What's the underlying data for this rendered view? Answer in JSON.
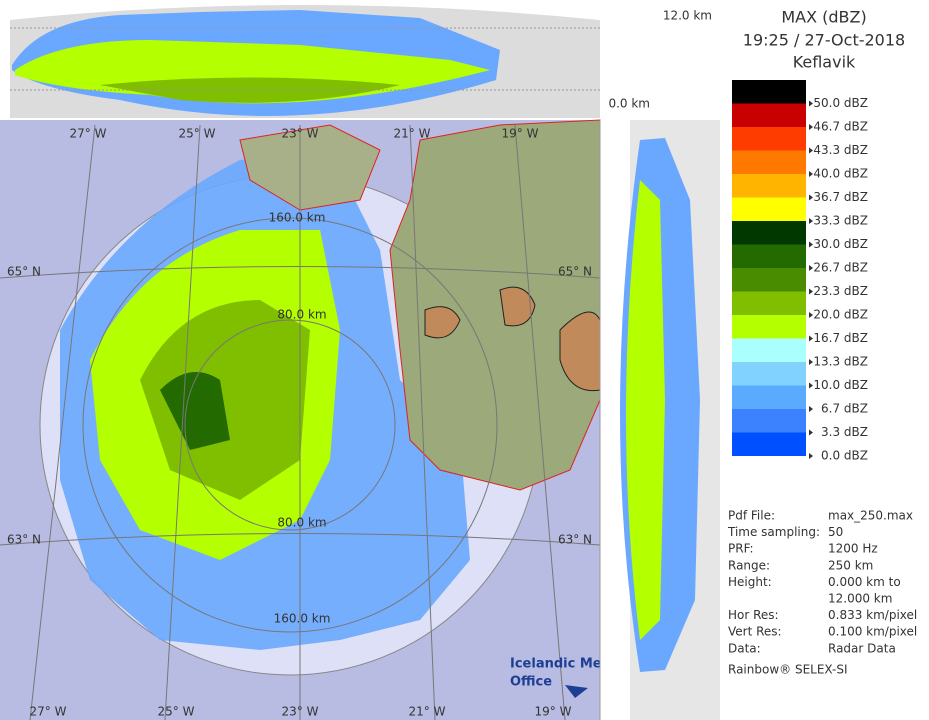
{
  "header": {
    "title": "MAX (dBZ)",
    "time": "19:25 / 27-Oct-2018",
    "station": "Keflavik"
  },
  "legend": {
    "labels": [
      "50.0 dBZ",
      "46.7 dBZ",
      "43.3 dBZ",
      "40.0 dBZ",
      "36.7 dBZ",
      "33.3 dBZ",
      "30.0 dBZ",
      "26.7 dBZ",
      "23.3 dBZ",
      "20.0 dBZ",
      "16.7 dBZ",
      "13.3 dBZ",
      "10.0 dBZ",
      "6.7 dBZ",
      "3.3 dBZ",
      "0.0 dBZ"
    ],
    "colors": [
      "#000000",
      "#c80000",
      "#ff3c00",
      "#ff7800",
      "#ffb400",
      "#ffff00",
      "#003800",
      "#236b00",
      "#4a8c00",
      "#7fbf00",
      "#b4ff00",
      "#aaffff",
      "#82d2ff",
      "#5aaaff",
      "#3c82ff",
      "#0050ff",
      "#ffffff"
    ]
  },
  "info": [
    {
      "label": "Pdf File:",
      "value": [
        "max_250.max"
      ]
    },
    {
      "label": "Time sampling:",
      "value": [
        "50"
      ]
    },
    {
      "label": "PRF:",
      "value": [
        "1200 Hz"
      ]
    },
    {
      "label": "Range:",
      "value": [
        "250 km"
      ]
    },
    {
      "label": "Height:",
      "value": [
        "0.000 km to",
        "12.000 km"
      ]
    },
    {
      "label": "Hor Res:",
      "value": [
        "0.833 km/pixel"
      ]
    },
    {
      "label": "Vert Res:",
      "value": [
        "0.100 km/pixel"
      ]
    },
    {
      "label": "Data:",
      "value": [
        "Radar Data"
      ]
    }
  ],
  "footer": "Rainbow® SELEX-SI",
  "profile": {
    "top": "12.0 km",
    "bottom": "0.0 km"
  },
  "map": {
    "lon_top": [
      "27° W",
      "25° W",
      "23° W",
      "21° W",
      "19° W"
    ],
    "lon_bottom": [
      "27° W",
      "25° W",
      "23° W",
      "21° W",
      "19° W"
    ],
    "lat": [
      "65° N",
      "63° N"
    ],
    "rings": [
      "160.0 km",
      "80.0 km",
      "80.0 km",
      "160.0 km"
    ]
  },
  "logo": [
    "Icelandic Met",
    "Office"
  ]
}
